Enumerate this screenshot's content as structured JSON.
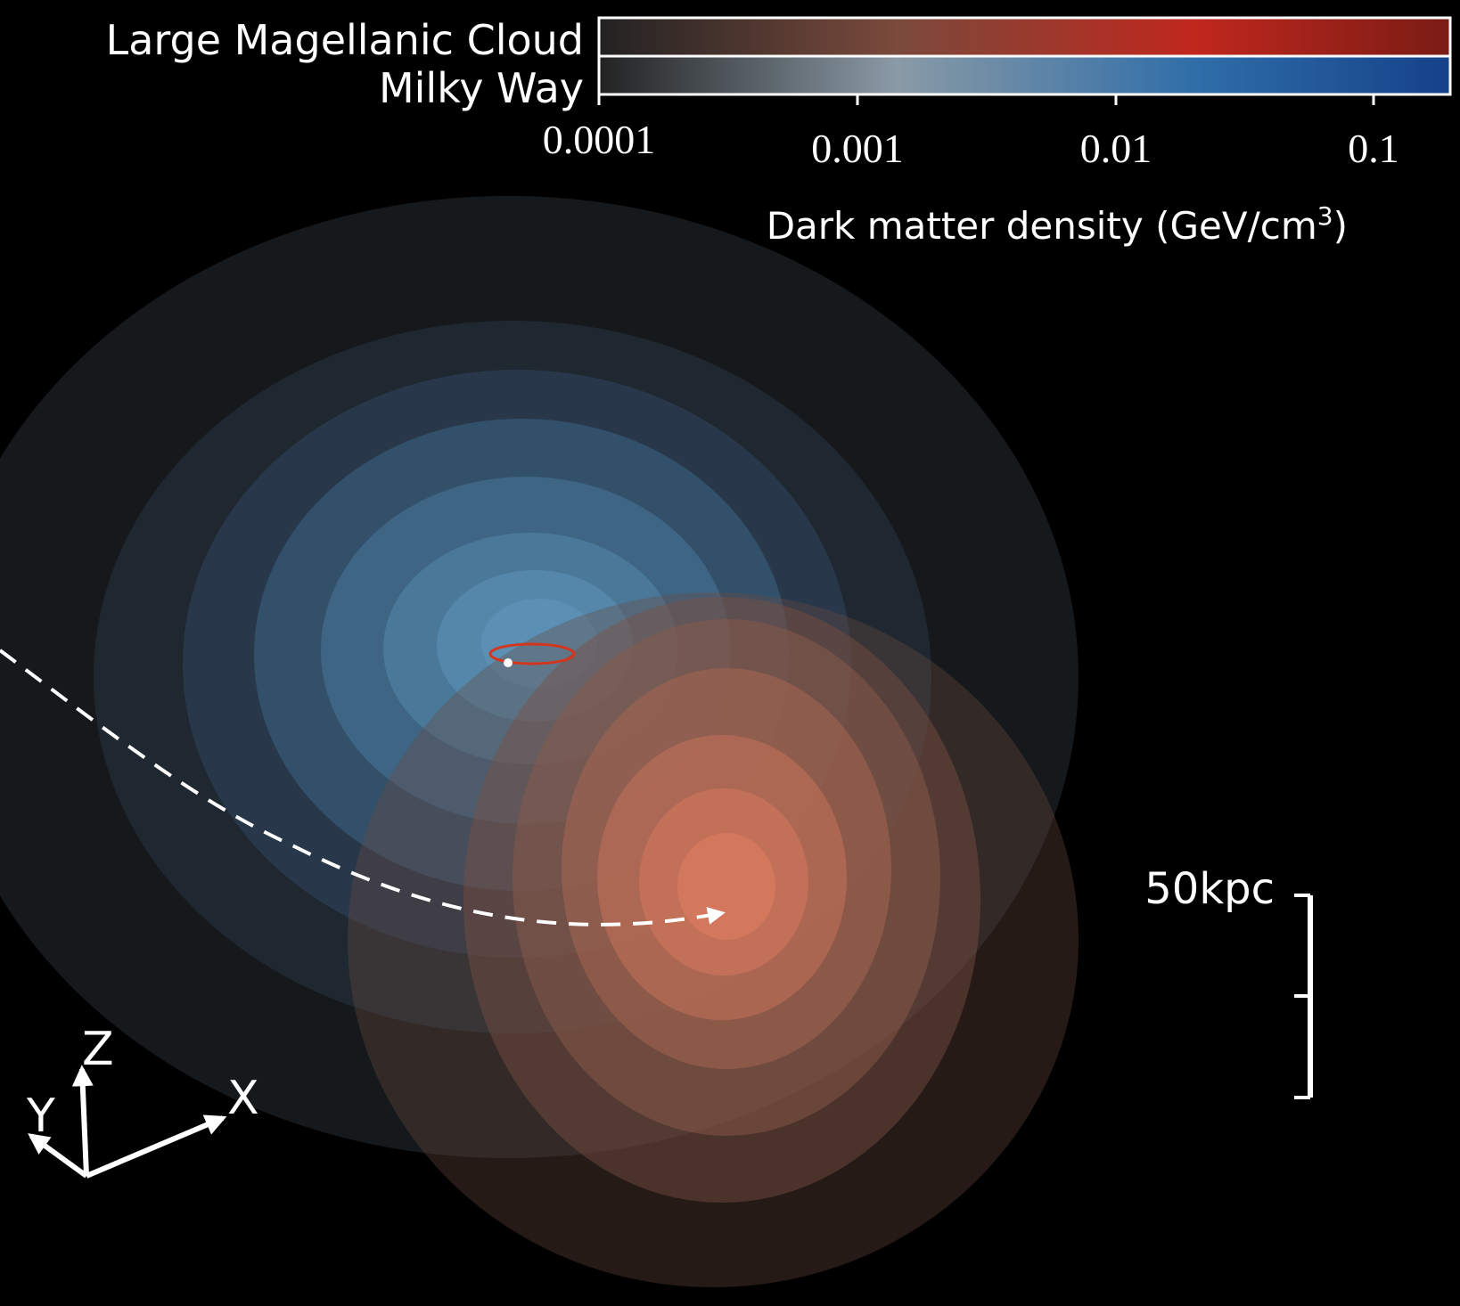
{
  "legend": {
    "lmc_label": "Large Magellanic Cloud",
    "mw_label": "Milky Way",
    "lmc_color": "#c0271d",
    "mw_color": "#1e4f96",
    "tick_labels": [
      "0.0001",
      "0.001",
      "0.01",
      "0.1"
    ],
    "axis_label": "Dark matter density (GeV/cm",
    "axis_label_sup": "3",
    "axis_label_end": ")"
  },
  "scale_bar": {
    "label": "50kpc"
  },
  "axes_triad": {
    "labels": {
      "x": "X",
      "y": "Y",
      "z": "Z"
    }
  },
  "halos": {
    "milky_way_color": "#5d91b8",
    "lmc_color": "#e07a5f"
  },
  "lmc_orbit": {
    "style": "dashed",
    "color": "#ffffff"
  },
  "galactic_disk": {
    "color": "#d3361f"
  },
  "sun_marker": {
    "color": "#ffffff"
  }
}
